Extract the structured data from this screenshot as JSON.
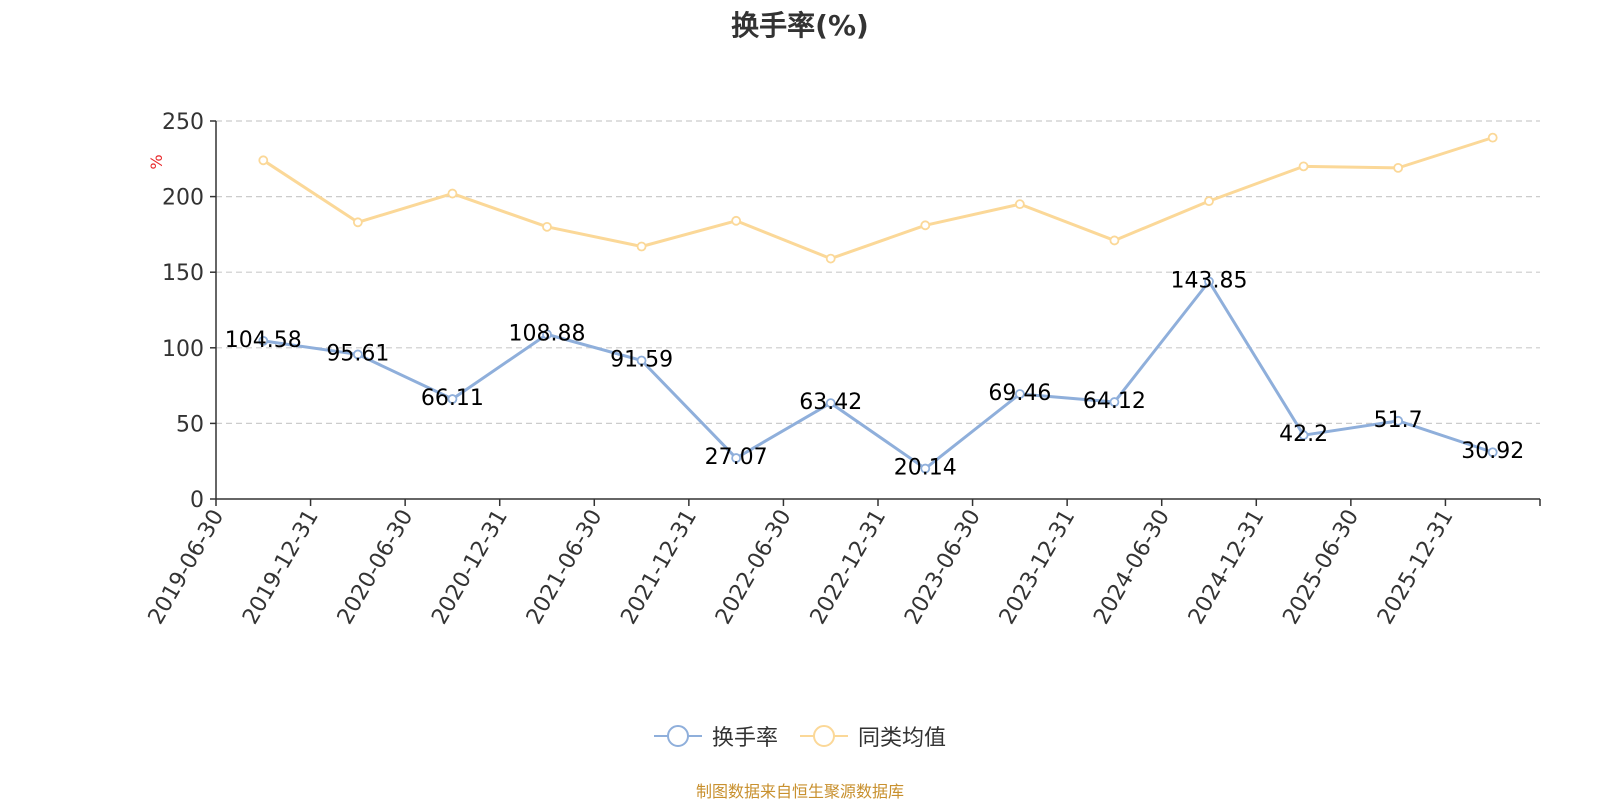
{
  "chart_data": {
    "type": "line",
    "title": "换手率(%)",
    "ylabel": "%",
    "xlabel": "",
    "ylim": [
      0,
      250
    ],
    "yticks": [
      0,
      50,
      100,
      150,
      200,
      250
    ],
    "grid": true,
    "legend_position": "bottom",
    "categories": [
      "2019-06-30",
      "2019-12-31",
      "2020-06-30",
      "2020-12-31",
      "2021-06-30",
      "2021-12-31",
      "2022-06-30",
      "2022-12-31",
      "2023-06-30",
      "2023-12-31",
      "2024-06-30",
      "2024-12-31",
      "2025-06-30",
      "2025-12-31"
    ],
    "series": [
      {
        "name": "换手率",
        "color": "#8fafdb",
        "show_labels": true,
        "values": [
          104.58,
          95.61,
          66.11,
          108.88,
          91.59,
          27.07,
          63.42,
          20.14,
          69.46,
          64.12,
          143.85,
          42.2,
          51.7,
          30.92
        ],
        "labels": [
          "104.58",
          "95.61",
          "66.11",
          "108.88",
          "91.59",
          "27.07",
          "63.42",
          "20.14",
          "69.46",
          "64.12",
          "143.85",
          "42.2",
          "51.7",
          "30.92"
        ]
      },
      {
        "name": "同类均值",
        "color": "#fbd898",
        "show_labels": false,
        "values": [
          224,
          183,
          202,
          180,
          167,
          184,
          159,
          181,
          195,
          171,
          197,
          220,
          219,
          239
        ]
      }
    ]
  },
  "source_note": "制图数据来自恒生聚源数据库",
  "colors": {
    "axis": "#333333",
    "grid": "#cccccc",
    "ylabel": "#e8282b",
    "source": "#c8902e"
  }
}
